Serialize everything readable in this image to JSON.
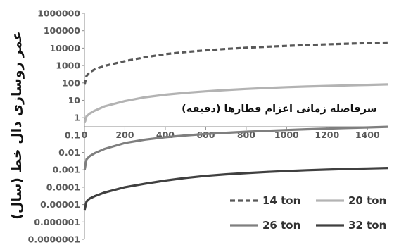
{
  "chart_data": {
    "type": "line",
    "xlabel": "سرفاصله زمانی اعزام قطارها (دقیقه)",
    "ylabel": "عمر روسازی دال خط (سال)",
    "xlim": [
      0,
      1500
    ],
    "ylim": [
      1e-07,
      1000000
    ],
    "yscale": "log",
    "x_ticks": [
      "0",
      "200",
      "400",
      "600",
      "800",
      "1000",
      "1200",
      "1400"
    ],
    "y_ticks": [
      "1000000",
      "100000",
      "10000",
      "1000",
      "100",
      "10",
      "1",
      "0.1",
      "0.01",
      "0.001",
      "0.0001",
      "0.00001",
      "0.000001",
      "0.0000001"
    ],
    "grid": false,
    "legend_position": "bottom-right",
    "series": [
      {
        "name": "14 ton",
        "color": "#595959",
        "dash": "dashed",
        "x": [
          1,
          10,
          25,
          50,
          100,
          200,
          300,
          400,
          500,
          600,
          700,
          800,
          900,
          1000,
          1100,
          1200,
          1300,
          1400,
          1500
        ],
        "y": [
          80,
          250,
          400,
          600,
          950,
          1800,
          3000,
          4500,
          6000,
          7500,
          9000,
          10500,
          12000,
          13500,
          15000,
          16500,
          18000,
          19500,
          21000
        ]
      },
      {
        "name": "20 ton",
        "color": "#b3b3b3",
        "dash": "solid",
        "x": [
          1,
          10,
          25,
          50,
          100,
          200,
          300,
          400,
          500,
          600,
          700,
          800,
          900,
          1000,
          1100,
          1200,
          1300,
          1400,
          1500
        ],
        "y": [
          0.5,
          1.2,
          1.7,
          2.5,
          4.5,
          9,
          15,
          21,
          27,
          33,
          39,
          45,
          51,
          57,
          62,
          67,
          72,
          77,
          82
        ]
      },
      {
        "name": "26 ton",
        "color": "#7f7f7f",
        "dash": "solid",
        "x": [
          1,
          10,
          25,
          50,
          100,
          200,
          300,
          400,
          500,
          600,
          700,
          800,
          900,
          1000,
          1100,
          1200,
          1300,
          1400,
          1500
        ],
        "y": [
          0.001,
          0.004,
          0.006,
          0.009,
          0.016,
          0.035,
          0.055,
          0.075,
          0.095,
          0.115,
          0.135,
          0.155,
          0.175,
          0.195,
          0.215,
          0.235,
          0.255,
          0.275,
          0.3
        ]
      },
      {
        "name": "32 ton",
        "color": "#404040",
        "dash": "solid",
        "x": [
          1,
          10,
          25,
          50,
          100,
          200,
          300,
          400,
          500,
          600,
          700,
          800,
          900,
          1000,
          1100,
          1200,
          1300,
          1400,
          1500
        ],
        "y": [
          5e-06,
          1.5e-05,
          2.2e-05,
          3e-05,
          5e-05,
          0.0001,
          0.00016,
          0.00024,
          0.00034,
          0.00045,
          0.00055,
          0.00065,
          0.00075,
          0.00085,
          0.00095,
          0.00103,
          0.00112,
          0.0012,
          0.00128
        ]
      }
    ]
  }
}
